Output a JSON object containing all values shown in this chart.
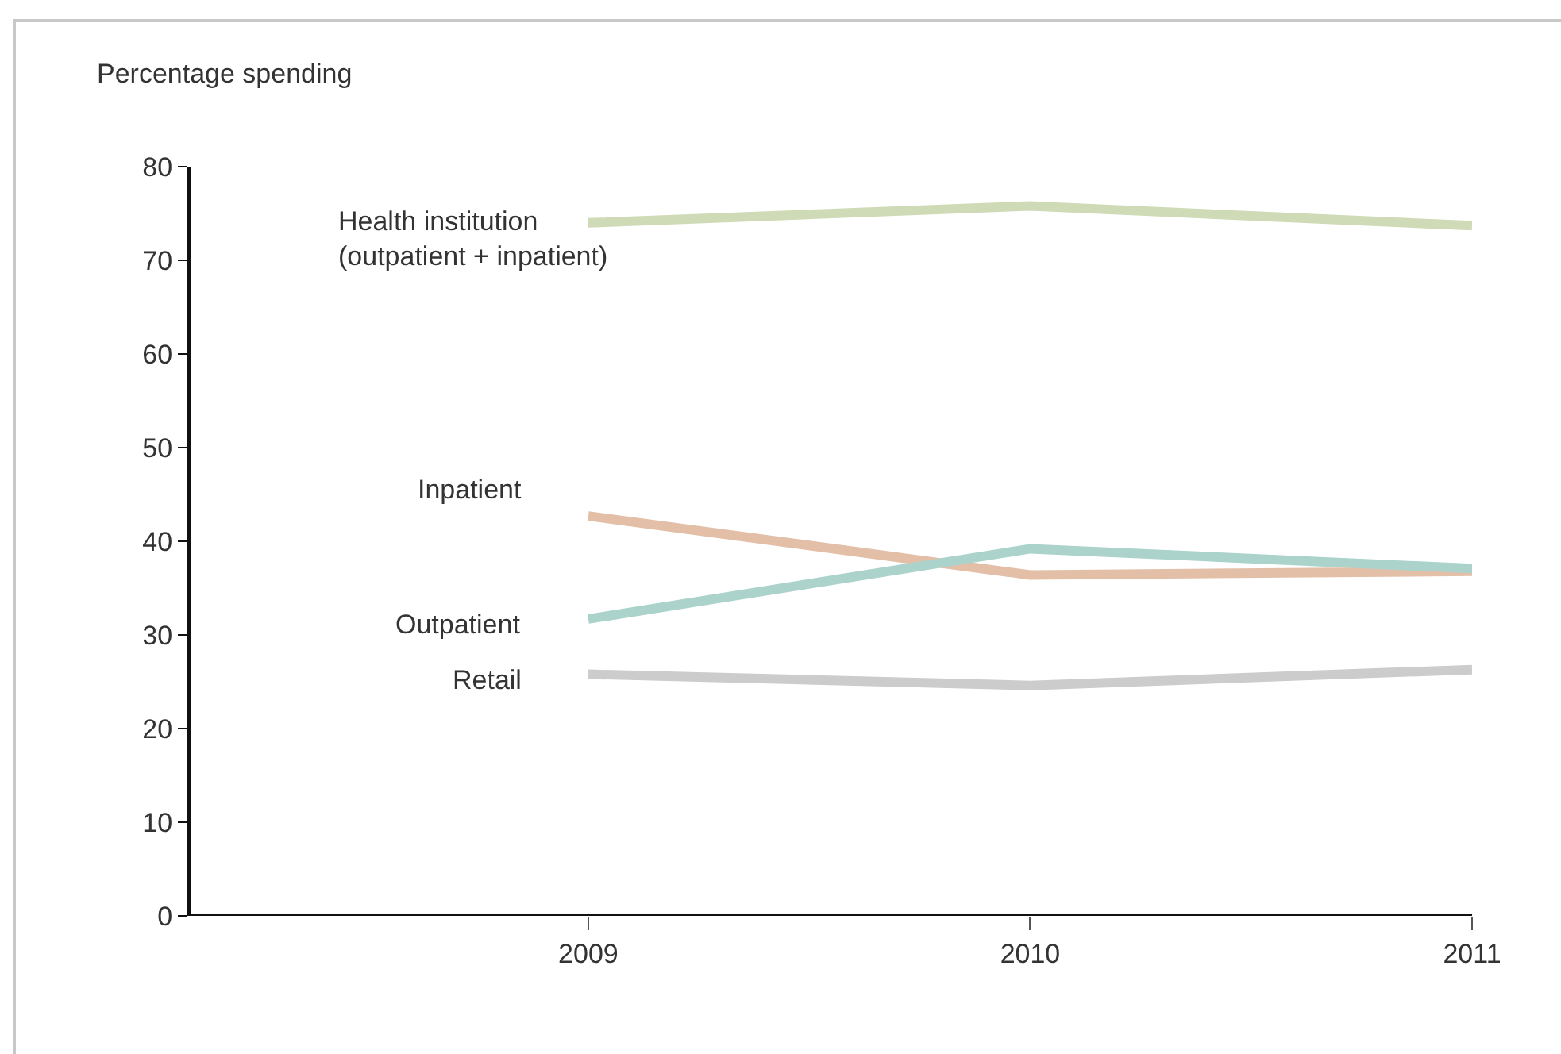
{
  "chart_data": {
    "type": "line",
    "ylabel": "Percentage spending",
    "x": [
      2009,
      2010,
      2011
    ],
    "xlim": [
      2008.1,
      2011
    ],
    "xticks": [
      2009,
      2010,
      2011
    ],
    "ylim": [
      0,
      80
    ],
    "yticks": [
      0,
      10,
      20,
      30,
      40,
      50,
      60,
      70,
      80
    ],
    "grid": false,
    "legend": false,
    "marker": "none",
    "line_style": "solid",
    "series": [
      {
        "name": "Health institution\n(outpatient + inpatient)",
        "color": "#cfdbb6",
        "values": [
          74,
          75.8,
          73.7
        ]
      },
      {
        "name": "Inpatient",
        "color": "#e3bfa8",
        "values": [
          42.7,
          36.4,
          36.8
        ]
      },
      {
        "name": "Outpatient",
        "color": "#abd3cc",
        "values": [
          31.7,
          39.2,
          37.1
        ]
      },
      {
        "name": "Retail",
        "color": "#cccccc",
        "values": [
          25.8,
          24.6,
          26.3
        ]
      }
    ]
  }
}
